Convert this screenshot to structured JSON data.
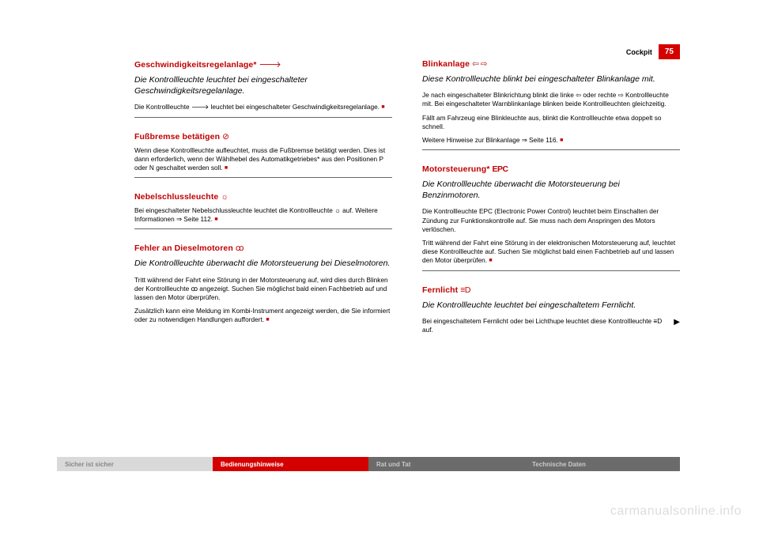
{
  "header": {
    "section": "Cockpit",
    "page_number": "75"
  },
  "left": {
    "s1": {
      "heading": "Geschwindigkeitsregelanlage* ",
      "icon": "🡒",
      "subtitle": "Die Kontrollleuchte leuchtet bei eingeschalteter Geschwindigkeitsregelanlage.",
      "body": "Die Kontrollleuchte 🡒 leuchtet bei eingeschalteter Geschwindigkeitsregelanlage. "
    },
    "s2": {
      "heading": "Fußbremse betätigen ",
      "icon": "⊘",
      "body": "Wenn diese Kontrollleuchte aufleuchtet, muss die Fußbremse betätigt werden. Dies ist dann erforderlich, wenn der Wählhebel des Automatikgetriebes* aus den Positionen P oder N geschaltet werden soll. "
    },
    "s3": {
      "heading": "Nebelschlussleuchte ",
      "icon": "☼",
      "body": "Bei eingeschalteter Nebelschlussleuchte leuchtet die Kontrollleuchte ☼ auf. Weitere Informationen ⇒ Seite 112. "
    },
    "s4": {
      "heading": "Fehler an Dieselmotoren ",
      "icon": "ꝏ",
      "subtitle": "Die Kontrollleuchte überwacht die Motorsteuerung bei Dieselmotoren.",
      "body1": "Tritt während der Fahrt eine Störung in der Motorsteuerung auf, wird dies durch Blinken der Kontrollleuchte ꝏ angezeigt. Suchen Sie möglichst bald einen Fachbetrieb auf und lassen den Motor überprüfen.",
      "body2": "Zusätzlich kann eine Meldung im Kombi-Instrument angezeigt werden, die Sie informiert oder zu notwendigen Handlungen auffordert. "
    }
  },
  "right": {
    "s1": {
      "heading": "Blinkanlage ",
      "icon": "⇦ ⇨",
      "subtitle": "Diese Kontrollleuchte blinkt bei eingeschalteter Blinkanlage mit.",
      "body1": "Je nach eingeschalteter Blinkrichtung blinkt die linke ⇦ oder rechte ⇨ Kontrollleuchte mit. Bei eingeschalteter Warnblinkanlage blinken beide Kontrollleuchten gleichzeitig.",
      "body2": "Fällt am Fahrzeug eine Blinkleuchte aus, blinkt die Kontrollleuchte etwa doppelt so schnell.",
      "body3": "Weitere Hinweise zur Blinkanlage ⇒ Seite 116. "
    },
    "s2": {
      "heading": "Motorsteuerung* ",
      "icon": "EPC",
      "subtitle": "Die Kontrollleuchte überwacht die Motorsteuerung bei Benzinmotoren.",
      "body1": "Die Kontrollleuchte EPC (Electronic Power Control) leuchtet beim Einschalten der Zündung zur Funktionskontrolle auf. Sie muss nach dem Anspringen des Motors verlöschen.",
      "body2": "Tritt während der Fahrt eine Störung in der elektronischen Motorsteuerung auf, leuchtet diese Kontrollleuchte auf. Suchen Sie möglichst bald einen Fachbetrieb auf und lassen den Motor überprüfen. "
    },
    "s3": {
      "heading": "Fernlicht ",
      "icon": "≡D",
      "subtitle": "Die Kontrollleuchte leuchtet bei eingeschaltetem Fernlicht.",
      "body": "Bei eingeschaltetem Fernlicht oder bei Lichthupe leuchtet diese Kontrollleuchte ≡D auf."
    }
  },
  "footer": {
    "t1": "Sicher ist sicher",
    "t2": "Bedienungshinweise",
    "t3": "Rat und Tat",
    "t4": "Technische Daten"
  },
  "watermark": "carmanualsonline.info",
  "square": "■",
  "arrow": "▶"
}
